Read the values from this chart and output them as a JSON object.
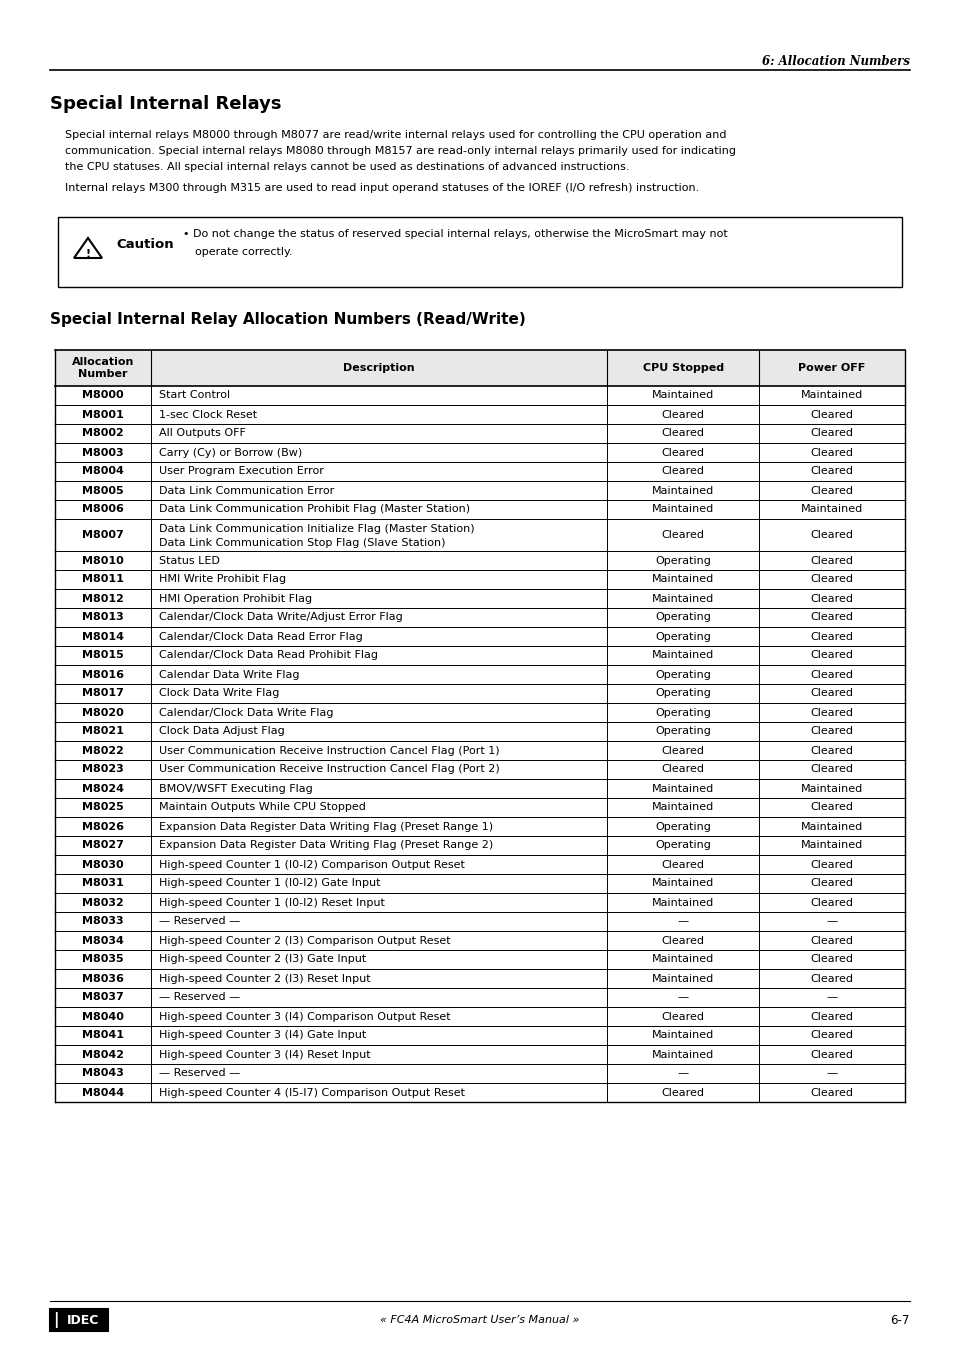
{
  "page_header": "6: Allocation Numbers",
  "section_title": "Special Internal Relays",
  "intro_text1": "Special internal relays M8000 through M8077 are read/write internal relays used for controlling the CPU operation and\ncommunication. Special internal relays M8080 through M8157 are read-only internal relays primarily used for indicating\nthe CPU statuses. All special internal relays cannot be used as destinations of advanced instructions.",
  "intro_text2": "Internal relays M300 through M315 are used to read input operand statuses of the IOREF (I/O refresh) instruction.",
  "caution_text1": "• Do not change the status of reserved special internal relays, otherwise the MicroSmart may not",
  "caution_text2": "operate correctly.",
  "table_title": "Special Internal Relay Allocation Numbers (Read/Write)",
  "col_headers": [
    "Allocation\nNumber",
    "Description",
    "CPU Stopped",
    "Power OFF"
  ],
  "rows": [
    [
      "M8000",
      "Start Control",
      "Maintained",
      "Maintained"
    ],
    [
      "M8001",
      "1-sec Clock Reset",
      "Cleared",
      "Cleared"
    ],
    [
      "M8002",
      "All Outputs OFF",
      "Cleared",
      "Cleared"
    ],
    [
      "M8003",
      "Carry (Cy) or Borrow (Bw)",
      "Cleared",
      "Cleared"
    ],
    [
      "M8004",
      "User Program Execution Error",
      "Cleared",
      "Cleared"
    ],
    [
      "M8005",
      "Data Link Communication Error",
      "Maintained",
      "Cleared"
    ],
    [
      "M8006",
      "Data Link Communication Prohibit Flag (Master Station)",
      "Maintained",
      "Maintained"
    ],
    [
      "M8007",
      "Data Link Communication Initialize Flag (Master Station)\nData Link Communication Stop Flag (Slave Station)",
      "Cleared",
      "Cleared"
    ],
    [
      "M8010",
      "Status LED",
      "Operating",
      "Cleared"
    ],
    [
      "M8011",
      "HMI Write Prohibit Flag",
      "Maintained",
      "Cleared"
    ],
    [
      "M8012",
      "HMI Operation Prohibit Flag",
      "Maintained",
      "Cleared"
    ],
    [
      "M8013",
      "Calendar/Clock Data Write/Adjust Error Flag",
      "Operating",
      "Cleared"
    ],
    [
      "M8014",
      "Calendar/Clock Data Read Error Flag",
      "Operating",
      "Cleared"
    ],
    [
      "M8015",
      "Calendar/Clock Data Read Prohibit Flag",
      "Maintained",
      "Cleared"
    ],
    [
      "M8016",
      "Calendar Data Write Flag",
      "Operating",
      "Cleared"
    ],
    [
      "M8017",
      "Clock Data Write Flag",
      "Operating",
      "Cleared"
    ],
    [
      "M8020",
      "Calendar/Clock Data Write Flag",
      "Operating",
      "Cleared"
    ],
    [
      "M8021",
      "Clock Data Adjust Flag",
      "Operating",
      "Cleared"
    ],
    [
      "M8022",
      "User Communication Receive Instruction Cancel Flag (Port 1)",
      "Cleared",
      "Cleared"
    ],
    [
      "M8023",
      "User Communication Receive Instruction Cancel Flag (Port 2)",
      "Cleared",
      "Cleared"
    ],
    [
      "M8024",
      "BMOV/WSFT Executing Flag",
      "Maintained",
      "Maintained"
    ],
    [
      "M8025",
      "Maintain Outputs While CPU Stopped",
      "Maintained",
      "Cleared"
    ],
    [
      "M8026",
      "Expansion Data Register Data Writing Flag (Preset Range 1)",
      "Operating",
      "Maintained"
    ],
    [
      "M8027",
      "Expansion Data Register Data Writing Flag (Preset Range 2)",
      "Operating",
      "Maintained"
    ],
    [
      "M8030",
      "High-speed Counter 1 (I0-I2) Comparison Output Reset",
      "Cleared",
      "Cleared"
    ],
    [
      "M8031",
      "High-speed Counter 1 (I0-I2) Gate Input",
      "Maintained",
      "Cleared"
    ],
    [
      "M8032",
      "High-speed Counter 1 (I0-I2) Reset Input",
      "Maintained",
      "Cleared"
    ],
    [
      "M8033",
      "— Reserved —",
      "—",
      "—"
    ],
    [
      "M8034",
      "High-speed Counter 2 (I3) Comparison Output Reset",
      "Cleared",
      "Cleared"
    ],
    [
      "M8035",
      "High-speed Counter 2 (I3) Gate Input",
      "Maintained",
      "Cleared"
    ],
    [
      "M8036",
      "High-speed Counter 2 (I3) Reset Input",
      "Maintained",
      "Cleared"
    ],
    [
      "M8037",
      "— Reserved —",
      "—",
      "—"
    ],
    [
      "M8040",
      "High-speed Counter 3 (I4) Comparison Output Reset",
      "Cleared",
      "Cleared"
    ],
    [
      "M8041",
      "High-speed Counter 3 (I4) Gate Input",
      "Maintained",
      "Cleared"
    ],
    [
      "M8042",
      "High-speed Counter 3 (I4) Reset Input",
      "Maintained",
      "Cleared"
    ],
    [
      "M8043",
      "— Reserved —",
      "—",
      "—"
    ],
    [
      "M8044",
      "High-speed Counter 4 (I5-I7) Comparison Output Reset",
      "Cleared",
      "Cleared"
    ]
  ],
  "footer_left": "IDEC",
  "footer_center": "« FC4A MicroSmart User’s Manual »",
  "footer_right": "6-7"
}
